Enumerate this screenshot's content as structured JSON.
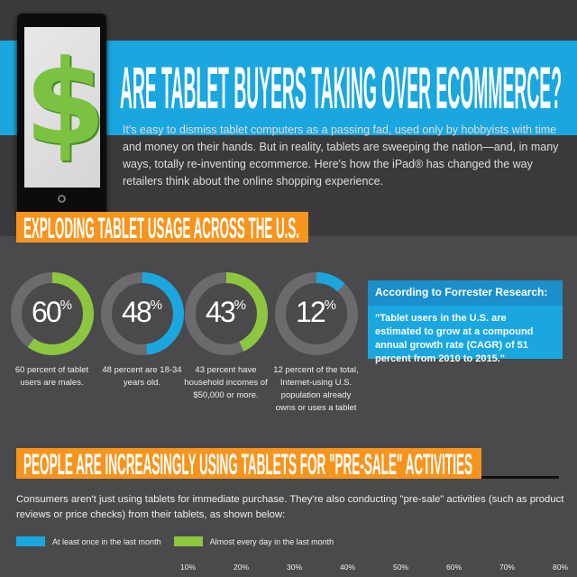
{
  "header": {
    "title": "ARE TABLET BUYERS TAKING OVER ECOMMERCE?",
    "intro": "It's easy to dismiss tablet computers as a passing fad, used only by hobbyists with time and money on their hands. But in reality, tablets are sweeping the nation—and, in many ways, totally re-inventing ecommerce. Here's how the iPad® has changed the way retailers think about the online shopping experience.",
    "icon": "dollar-sign-tablet-icon"
  },
  "section1": {
    "heading": "EXPLODING TABLET USAGE ACROSS THE U.S.",
    "stats": [
      {
        "value": 60,
        "label": "60",
        "unit": "%",
        "caption": "60 percent of tablet users are males.",
        "color": "#8dc63f"
      },
      {
        "value": 48,
        "label": "48",
        "unit": "%",
        "caption": "48 percent are 18-34 years old.",
        "color": "#1aa7e0"
      },
      {
        "value": 43,
        "label": "43",
        "unit": "%",
        "caption": "43 percent have household incomes of $50,000 or more.",
        "color": "#8dc63f"
      },
      {
        "value": 12,
        "label": "12",
        "unit": "%",
        "caption": "12 percent of the total, Internet-using U.S. population already owns or uses a tablet",
        "color": "#1aa7e0"
      }
    ],
    "quote_title": "According to Forrester Research:",
    "quote": "\"Tablet users in the U.S. are estimated to grow at a compound annual growth rate (CAGR) of 51 percent from 2010 to 2015.\""
  },
  "section2": {
    "heading": "PEOPLE ARE INCREASINGLY USING TABLETS FOR \"PRE-SALE\" ACTIVITIES",
    "text": "Consumers aren't just using tablets for immediate purchase. They're also conducting \"pre-sale\" activities (such as product reviews or price checks) from their tablets, as shown below:",
    "legend": [
      {
        "label": "At least once in the last month",
        "color": "#1aa7e0"
      },
      {
        "label": "Almost every day in the last month",
        "color": "#8dc63f"
      }
    ],
    "axis": [
      "10%",
      "20%",
      "30%",
      "40%",
      "50%",
      "60%",
      "70%",
      "80%"
    ]
  }
}
